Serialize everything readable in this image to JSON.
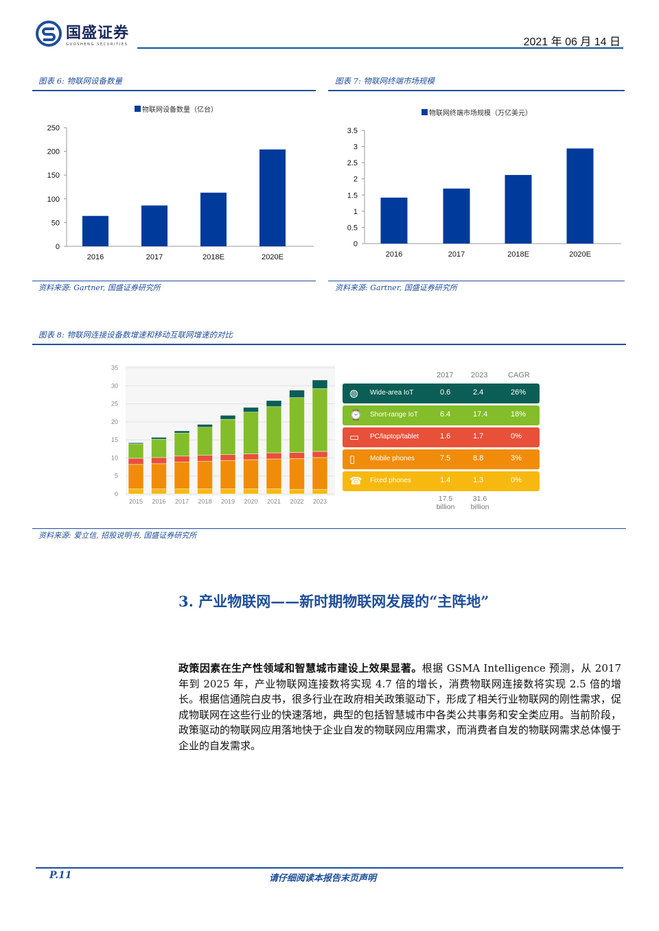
{
  "header": {
    "logo_cn": "国盛证券",
    "logo_en": "GUOSHENG SECURITIES",
    "date": "2021 年 06 月 14 日"
  },
  "fig6": {
    "title": "图表 6:  物联网设备数量",
    "source": "资料来源: Gartner,  国盛证券研究所"
  },
  "fig7": {
    "title": "图表 7:  物联网终端市场规模",
    "source": "资料来源: Gartner,  国盛证券研究所"
  },
  "fig8": {
    "title": "图表 8:  物联网连接设备数增速和移动互联网增速的对比",
    "source": "资料来源: 爱立信,  招股说明书,  国盛证券研究所",
    "table": {
      "headers": [
        "2017",
        "2023",
        "CAGR"
      ],
      "rows": [
        {
          "label": "Wide-area IoT",
          "icon": "globe-icon",
          "v2017": "0.6",
          "v2023": "2.4",
          "cagr": "26%",
          "color": "#0b5e55"
        },
        {
          "label": "Short-range IoT",
          "icon": "smartwatch-icon",
          "v2017": "6.4",
          "v2023": "17.4",
          "cagr": "18%",
          "color": "#84bd2a"
        },
        {
          "label": "PC/laptop/tablet",
          "icon": "laptop-icon",
          "v2017": "1.6",
          "v2023": "1.7",
          "cagr": "0%",
          "color": "#e8503a"
        },
        {
          "label": "Mobile phones",
          "icon": "mobile-phone-icon",
          "v2017": "7.5",
          "v2023": "8.8",
          "cagr": "3%",
          "color": "#f08c0a"
        },
        {
          "label": "Fixed phones",
          "icon": "fixed-phone-icon",
          "v2017": "1.4",
          "v2023": "1.3",
          "cagr": "0%",
          "color": "#f7b90f"
        }
      ],
      "totals": [
        {
          "value": "17.5",
          "unit": "billion"
        },
        {
          "value": "31.6",
          "unit": "billion"
        }
      ]
    }
  },
  "chart_data": [
    {
      "type": "bar",
      "legend": "物联网设备数量（亿台）",
      "categories": [
        "2016",
        "2017",
        "2018E",
        "2020E"
      ],
      "values": [
        64,
        86,
        113,
        204
      ],
      "ylim": [
        0,
        250
      ],
      "yticks": [
        0,
        50,
        100,
        150,
        200,
        250
      ],
      "color": "#003a9b",
      "legend_position": "top"
    },
    {
      "type": "bar",
      "legend": "物联网终端市场规模（万亿美元）",
      "categories": [
        "2016",
        "2017",
        "2018E",
        "2020E"
      ],
      "values": [
        1.42,
        1.7,
        2.12,
        2.94
      ],
      "ylim": [
        0,
        3.5
      ],
      "yticks": [
        0,
        0.5,
        1,
        1.5,
        2,
        2.5,
        3,
        3.5
      ],
      "color": "#003a9b",
      "legend_position": "top"
    },
    {
      "type": "bar",
      "stacked": true,
      "categories": [
        "2015",
        "2016",
        "2017",
        "2018",
        "2019",
        "2020",
        "2021",
        "2022",
        "2023"
      ],
      "ylim": [
        0,
        35
      ],
      "yticks": [
        0,
        5,
        10,
        15,
        20,
        25,
        30,
        35
      ],
      "grid": true,
      "series": [
        {
          "values": [
            1.4,
            1.4,
            1.4,
            1.4,
            1.4,
            1.4,
            1.4,
            1.3,
            1.3
          ],
          "color": "#f7b90f"
        },
        {
          "values": [
            6.8,
            7.0,
            7.5,
            7.7,
            7.9,
            8.1,
            8.3,
            8.5,
            8.8
          ],
          "color": "#f08c0a"
        },
        {
          "values": [
            1.7,
            1.7,
            1.6,
            1.6,
            1.6,
            1.6,
            1.7,
            1.7,
            1.7
          ],
          "color": "#e8503a"
        },
        {
          "values": [
            4.0,
            5.1,
            6.4,
            7.8,
            9.8,
            11.6,
            12.8,
            15.2,
            17.4
          ],
          "color": "#84bd2a"
        },
        {
          "values": [
            0.3,
            0.5,
            0.6,
            0.8,
            1.1,
            1.3,
            1.7,
            2.1,
            2.4
          ],
          "color": "#0b5e55"
        }
      ]
    }
  ],
  "section": {
    "heading": "3. 产业物联网——新时期物联网发展的“主阵地”"
  },
  "paragraph": {
    "lead": "政策因素在生产性领域和智慧城市建设上效果显著。",
    "body": "根据 GSMA Intelligence 预测，从 2017 年到 2025 年，产业物联网连接数将实现 4.7 倍的增长，消费物联网连接数将实现 2.5 倍的增长。根据信通院白皮书，很多行业在政府相关政策驱动下，形成了相关行业物联网的刚性需求，促成物联网在这些行业的快速落地，典型的包括智慧城市中各类公共事务和安全类应用。当前阶段，政策驱动的物联网应用落地快于企业自发的物联网应用需求，而消费者自发的物联网需求总体慢于企业的自发需求。"
  },
  "footer": {
    "page": "P.11",
    "notice": "请仔细阅读本报告末页声明"
  }
}
